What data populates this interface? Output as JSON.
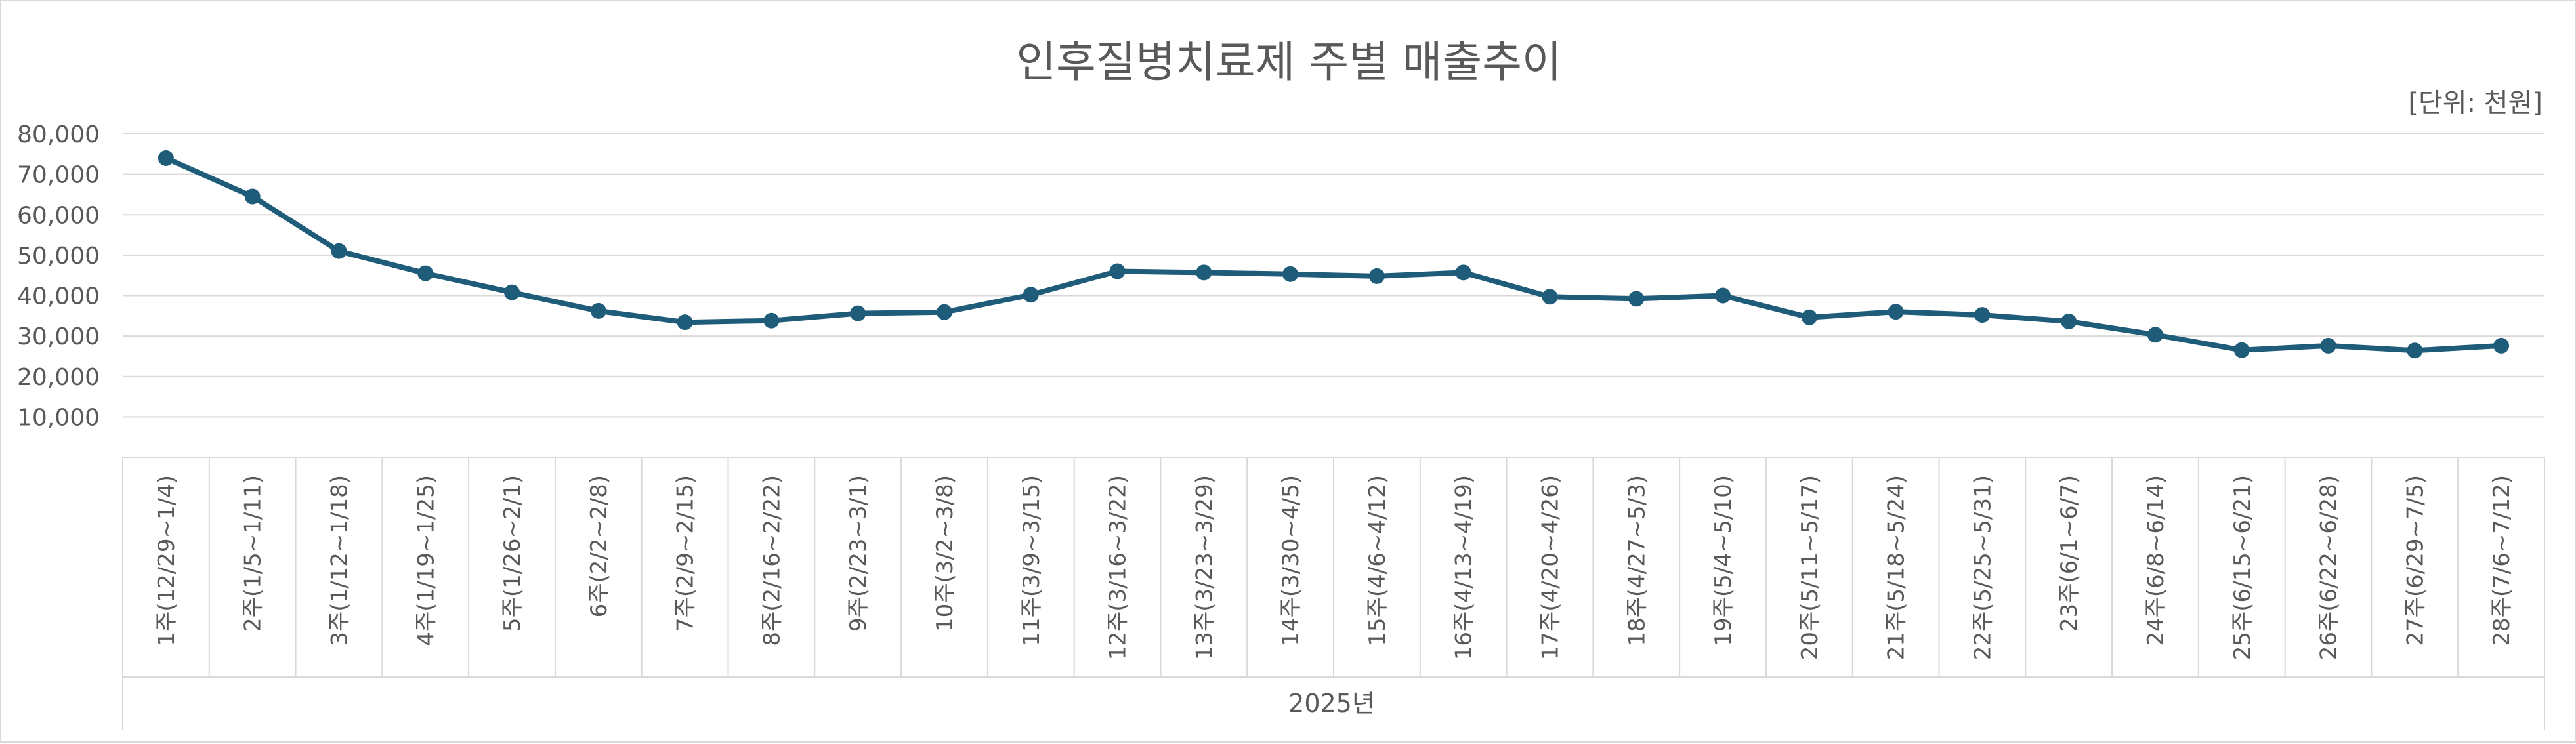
{
  "chart_data": {
    "type": "line",
    "title": "인후질병치료제 주별 매출추이",
    "unit_label": "[단위: 천원]",
    "x_group_label": "2025년",
    "categories": [
      "1주(12/29~1/4)",
      "2주(1/5~1/11)",
      "3주(1/12~1/18)",
      "4주(1/19~1/25)",
      "5주(1/26~2/1)",
      "6주(2/2~2/8)",
      "7주(2/9~2/15)",
      "8주(2/16~2/22)",
      "9주(2/23~3/1)",
      "10주(3/2~3/8)",
      "11주(3/9~3/15)",
      "12주(3/16~3/22)",
      "13주(3/23~3/29)",
      "14주(3/30~4/5)",
      "15주(4/6~4/12)",
      "16주(4/13~4/19)",
      "17주(4/20~4/26)",
      "18주(4/27~5/3)",
      "19주(5/4~5/10)",
      "20주(5/11~5/17)",
      "21주(5/18~5/24)",
      "22주(5/25~5/31)",
      "23주(6/1~6/7)",
      "24주(6/8~6/14)",
      "25주(6/15~6/21)",
      "26주(6/22~6/28)",
      "27주(6/29~7/5)",
      "28주(7/6~7/12)"
    ],
    "values": [
      74000,
      64500,
      51000,
      45500,
      40800,
      36200,
      33400,
      33800,
      35600,
      35900,
      40200,
      46000,
      45700,
      45300,
      44800,
      45700,
      39700,
      39200,
      40000,
      34600,
      36000,
      35200,
      33600,
      30300,
      26500,
      27600,
      26400,
      27600
    ],
    "yticks": [
      "10,000",
      "20,000",
      "30,000",
      "40,000",
      "50,000",
      "60,000",
      "70,000",
      "80,000"
    ],
    "ylim": [
      0,
      80000
    ],
    "ytick_values": [
      10000,
      20000,
      30000,
      40000,
      50000,
      60000,
      70000,
      80000
    ],
    "grid": true,
    "legend": "none",
    "line_color": "#1f5c7a"
  }
}
